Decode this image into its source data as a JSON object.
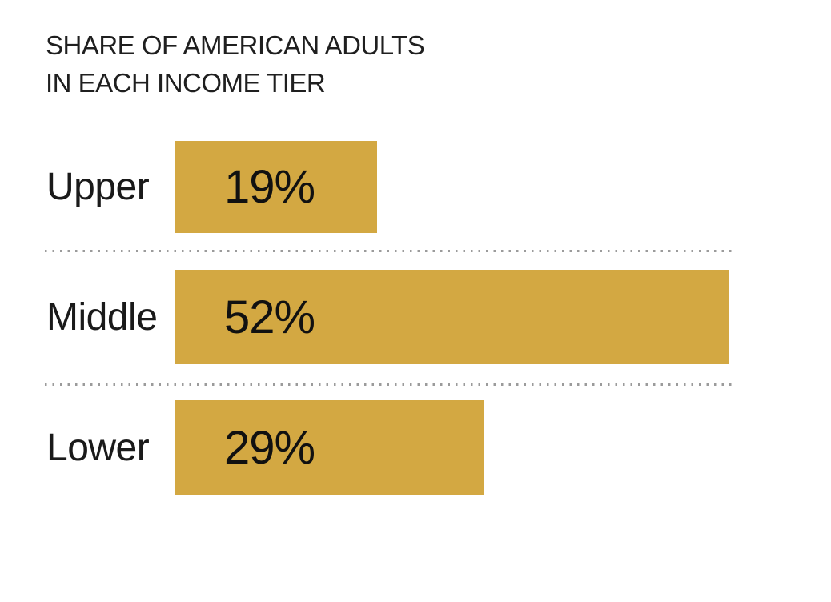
{
  "page": {
    "background_color": "#ffffff"
  },
  "chart": {
    "title_line1": "SHARE OF AMERICAN ADULTS",
    "title_line2": "IN EACH INCOME TIER"
  },
  "chart_data": {
    "type": "bar",
    "orientation": "horizontal",
    "title": "SHARE OF AMERICAN ADULTS IN EACH INCOME TIER",
    "categories": [
      "Upper",
      "Middle",
      "Lower"
    ],
    "values": [
      19,
      52,
      29
    ],
    "value_labels": [
      "19%",
      "52%",
      "29%"
    ],
    "xlabel": "",
    "ylabel": "",
    "xlim": [
      0,
      52.6
    ],
    "grid": false,
    "legend": false,
    "bar_color": "#d3a842",
    "category_label_color": "#1a1a1a",
    "value_label_color": "#111111",
    "title_color": "#1f1f1f",
    "separator_style": "dotted",
    "separator_color": "#9b9b9b"
  }
}
